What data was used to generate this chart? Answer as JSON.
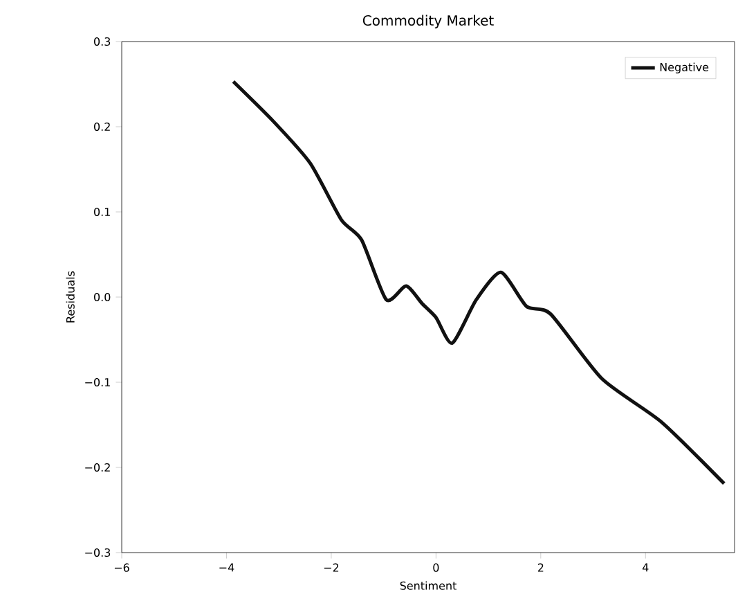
{
  "chart_data": {
    "type": "line",
    "title": "Commodity Market",
    "xlabel": "Sentiment",
    "ylabel": "Residuals",
    "xlim": [
      -6,
      5.7
    ],
    "ylim": [
      -0.3,
      0.3
    ],
    "xticks": [
      {
        "value": -6,
        "label": "−6"
      },
      {
        "value": -4,
        "label": "−4"
      },
      {
        "value": -2,
        "label": "−2"
      },
      0,
      2,
      4
    ],
    "yticks": [
      {
        "value": -0.3,
        "label": "−0.3"
      },
      {
        "value": -0.2,
        "label": "−0.2"
      },
      {
        "value": -0.1,
        "label": "−0.1"
      },
      {
        "value": 0,
        "label": "0.0"
      },
      0.1,
      0.2,
      0.3
    ],
    "legend": "top right",
    "grid": false,
    "marker": "none",
    "line_style": "solid",
    "series": [
      {
        "name": "Negative",
        "color": "#111111",
        "x": [
          -3.87,
          -3.1,
          -2.4,
          -1.81,
          -1.42,
          -0.95,
          -0.57,
          -0.26,
          0.0,
          0.31,
          0.77,
          1.24,
          1.73,
          2.19,
          3.17,
          4.31,
          5.5
        ],
        "values": [
          0.253,
          0.206,
          0.157,
          0.091,
          0.067,
          -0.003,
          0.013,
          -0.008,
          -0.024,
          -0.054,
          -0.003,
          0.029,
          -0.011,
          -0.02,
          -0.096,
          -0.147,
          -0.219
        ]
      }
    ]
  }
}
